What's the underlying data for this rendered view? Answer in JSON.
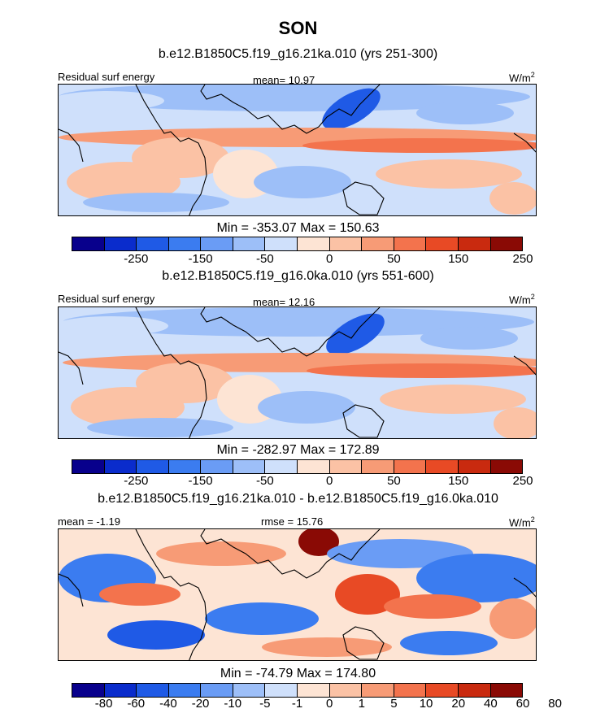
{
  "title": "SON",
  "units": "W/m",
  "units_sup": "2",
  "panels": [
    {
      "subtitle": "b.e12.B1850C5.f19_g16.21ka.010 (yrs 251-300)",
      "left_label": "Residual surf energy",
      "center_label": "mean=  10.97",
      "minmax": "Min = -353.07 Max = 150.63",
      "colorbar_labels": [
        "-250",
        "-150",
        "-50",
        "0",
        "50",
        "150",
        "250"
      ]
    },
    {
      "subtitle": "b.e12.B1850C5.f19_g16.0ka.010 (yrs 551-600)",
      "left_label": "Residual surf energy",
      "center_label": "mean=  12.16",
      "minmax": "Min = -282.97 Max = 172.89",
      "colorbar_labels": [
        "-250",
        "-150",
        "-50",
        "0",
        "50",
        "150",
        "250"
      ]
    },
    {
      "subtitle": "b.e12.B1850C5.f19_g16.21ka.010 - b.e12.B1850C5.f19_g16.0ka.010",
      "left_label": "mean =  -1.19",
      "center_label": "rmse =  15.76",
      "minmax": "Min = -74.79 Max = 174.80",
      "colorbar_labels": [
        "-80",
        "-60",
        "-40",
        "-20",
        "-10",
        "-5",
        "-1",
        "0",
        "1",
        "5",
        "10",
        "20",
        "40",
        "60",
        "80"
      ]
    }
  ],
  "colorbar_colors": [
    "#08008c",
    "#0a2ccc",
    "#1f5ae6",
    "#3b7cf0",
    "#6a9cf5",
    "#9dbff8",
    "#cfe0fb",
    "#fde4d4",
    "#fbc2a5",
    "#f79b76",
    "#f3734d",
    "#e84a25",
    "#c92a0f",
    "#8a0a05"
  ]
}
